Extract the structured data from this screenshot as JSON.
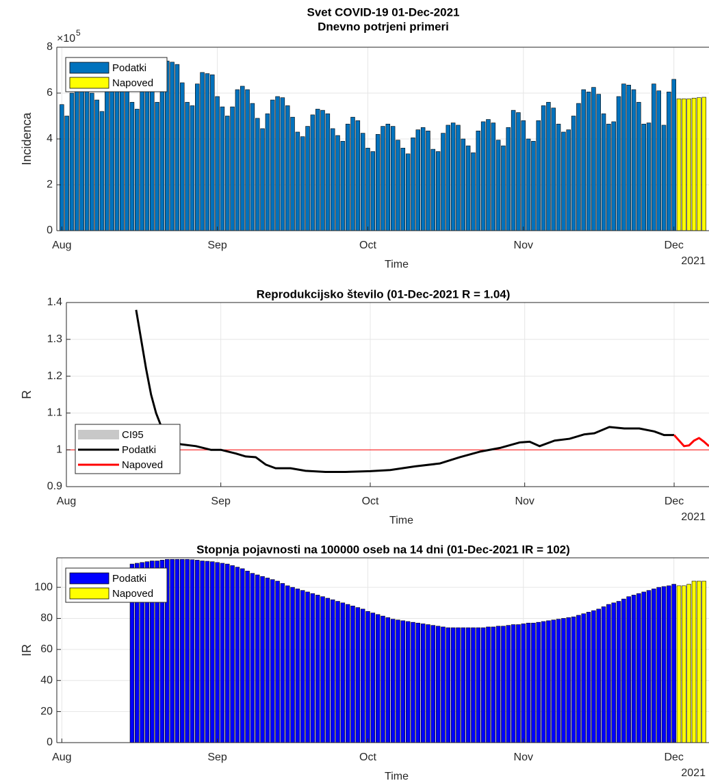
{
  "chart_data": [
    {
      "type": "bar",
      "title": "Svet COVID-19 01-Dec-2021",
      "subtitle": "Dnevno potrjeni primeri",
      "ylabel": "Incidenca",
      "xlabel": "Time",
      "x_year_label": "2021",
      "y_multiplier": "×10",
      "y_exponent": 5,
      "xlim": [
        "2021-07-31",
        "2021-12-08"
      ],
      "xticks": [
        {
          "value": "2021-08-01",
          "label": "Aug"
        },
        {
          "value": "2021-09-01",
          "label": "Sep"
        },
        {
          "value": "2021-10-01",
          "label": "Oct"
        },
        {
          "value": "2021-11-01",
          "label": "Nov"
        },
        {
          "value": "2021-12-01",
          "label": "Dec"
        }
      ],
      "ylim": [
        0,
        8
      ],
      "yticks": [
        0,
        2,
        4,
        6,
        8
      ],
      "grid": true,
      "legend": "upper left",
      "series": [
        {
          "name": "Podatki",
          "color": "#0072bd",
          "x": [
            "2021-08-01",
            "2021-08-02",
            "2021-08-03",
            "2021-08-04",
            "2021-08-05",
            "2021-08-06",
            "2021-08-07",
            "2021-08-08",
            "2021-08-09",
            "2021-08-10",
            "2021-08-11",
            "2021-08-12",
            "2021-08-13",
            "2021-08-14",
            "2021-08-15",
            "2021-08-16",
            "2021-08-17",
            "2021-08-18",
            "2021-08-19",
            "2021-08-20",
            "2021-08-21",
            "2021-08-22",
            "2021-08-23",
            "2021-08-24",
            "2021-08-25",
            "2021-08-26",
            "2021-08-27",
            "2021-08-28",
            "2021-08-29",
            "2021-08-30",
            "2021-08-31",
            "2021-09-01",
            "2021-09-02",
            "2021-09-03",
            "2021-09-04",
            "2021-09-05",
            "2021-09-06",
            "2021-09-07",
            "2021-09-08",
            "2021-09-09",
            "2021-09-10",
            "2021-09-11",
            "2021-09-12",
            "2021-09-13",
            "2021-09-14",
            "2021-09-15",
            "2021-09-16",
            "2021-09-17",
            "2021-09-18",
            "2021-09-19",
            "2021-09-20",
            "2021-09-21",
            "2021-09-22",
            "2021-09-23",
            "2021-09-24",
            "2021-09-25",
            "2021-09-26",
            "2021-09-27",
            "2021-09-28",
            "2021-09-29",
            "2021-09-30",
            "2021-10-01",
            "2021-10-02",
            "2021-10-03",
            "2021-10-04",
            "2021-10-05",
            "2021-10-06",
            "2021-10-07",
            "2021-10-08",
            "2021-10-09",
            "2021-10-10",
            "2021-10-11",
            "2021-10-12",
            "2021-10-13",
            "2021-10-14",
            "2021-10-15",
            "2021-10-16",
            "2021-10-17",
            "2021-10-18",
            "2021-10-19",
            "2021-10-20",
            "2021-10-21",
            "2021-10-22",
            "2021-10-23",
            "2021-10-24",
            "2021-10-25",
            "2021-10-26",
            "2021-10-27",
            "2021-10-28",
            "2021-10-29",
            "2021-10-30",
            "2021-10-31",
            "2021-11-01",
            "2021-11-02",
            "2021-11-03",
            "2021-11-04",
            "2021-11-05",
            "2021-11-06",
            "2021-11-07",
            "2021-11-08",
            "2021-11-09",
            "2021-11-10",
            "2021-11-11",
            "2021-11-12",
            "2021-11-13",
            "2021-11-14",
            "2021-11-15",
            "2021-11-16",
            "2021-11-17",
            "2021-11-18",
            "2021-11-19",
            "2021-11-20",
            "2021-11-21",
            "2021-11-22",
            "2021-11-23",
            "2021-11-24",
            "2021-11-25",
            "2021-11-26",
            "2021-11-27",
            "2021-11-28",
            "2021-11-29",
            "2021-11-30",
            "2021-12-01"
          ],
          "values": [
            5.5,
            5.0,
            6.0,
            6.3,
            6.2,
            6.4,
            6.0,
            5.7,
            5.2,
            6.1,
            6.4,
            6.5,
            6.3,
            6.2,
            5.6,
            5.3,
            6.1,
            6.3,
            6.2,
            5.6,
            6.8,
            7.4,
            7.35,
            7.25,
            6.45,
            5.6,
            5.45,
            6.4,
            6.9,
            6.85,
            6.8,
            5.85,
            5.4,
            5.0,
            5.4,
            6.15,
            6.3,
            6.15,
            5.55,
            4.9,
            4.45,
            5.1,
            5.7,
            5.85,
            5.8,
            5.45,
            4.95,
            4.3,
            4.1,
            4.55,
            5.05,
            5.3,
            5.25,
            5.1,
            4.45,
            4.15,
            3.9,
            4.65,
            4.95,
            4.8,
            4.25,
            3.6,
            3.45,
            4.2,
            4.55,
            4.65,
            4.55,
            3.95,
            3.6,
            3.35,
            4.05,
            4.4,
            4.5,
            4.35,
            3.55,
            3.45,
            4.25,
            4.6,
            4.7,
            4.6,
            4.0,
            3.7,
            3.4,
            4.35,
            4.75,
            4.85,
            4.7,
            3.95,
            3.7,
            4.5,
            5.25,
            5.15,
            4.8,
            4.0,
            3.9,
            4.8,
            5.45,
            5.6,
            5.35,
            4.65,
            4.3,
            4.4,
            5.0,
            5.55,
            6.15,
            6.05,
            6.25,
            5.95,
            5.1,
            4.65,
            4.75,
            5.85,
            6.4,
            6.35,
            6.15,
            5.6,
            4.65,
            4.7,
            6.4,
            6.1,
            4.6,
            6.05,
            6.6
          ]
        },
        {
          "name": "Napoved",
          "color": "#ffff00",
          "x": [
            "2021-12-02",
            "2021-12-03",
            "2021-12-04",
            "2021-12-05",
            "2021-12-06",
            "2021-12-07"
          ],
          "values": [
            5.75,
            5.75,
            5.75,
            5.78,
            5.8,
            5.82
          ]
        }
      ]
    },
    {
      "type": "line",
      "title": "Reprodukcijsko število (01-Dec-2021 R = 1.04)",
      "ylabel": "R",
      "xlabel": "Time",
      "x_year_label": "2021",
      "xlim": [
        "2021-08-01",
        "2021-12-08"
      ],
      "xticks": [
        {
          "value": "2021-08-01",
          "label": "Aug"
        },
        {
          "value": "2021-09-01",
          "label": "Sep"
        },
        {
          "value": "2021-10-01",
          "label": "Oct"
        },
        {
          "value": "2021-11-01",
          "label": "Nov"
        },
        {
          "value": "2021-12-01",
          "label": "Dec"
        }
      ],
      "ylim": [
        0.9,
        1.4
      ],
      "yticks": [
        0.9,
        1,
        1.1,
        1.2,
        1.3,
        1.4
      ],
      "grid": true,
      "legend": "lower left",
      "reference_line": {
        "value": 1,
        "color": "#ff0000"
      },
      "series": [
        {
          "name": "CI95",
          "color": "#c8c8c8"
        },
        {
          "name": "Podatki",
          "color": "#000000",
          "x": [
            "2021-08-15",
            "2021-08-16",
            "2021-08-17",
            "2021-08-18",
            "2021-08-19",
            "2021-08-20",
            "2021-08-21",
            "2021-08-22",
            "2021-08-24",
            "2021-08-27",
            "2021-08-30",
            "2021-09-01",
            "2021-09-04",
            "2021-09-06",
            "2021-09-08",
            "2021-09-10",
            "2021-09-12",
            "2021-09-15",
            "2021-09-18",
            "2021-09-22",
            "2021-09-26",
            "2021-10-01",
            "2021-10-05",
            "2021-10-10",
            "2021-10-15",
            "2021-10-19",
            "2021-10-23",
            "2021-10-27",
            "2021-10-31",
            "2021-11-02",
            "2021-11-04",
            "2021-11-07",
            "2021-11-10",
            "2021-11-13",
            "2021-11-15",
            "2021-11-18",
            "2021-11-21",
            "2021-11-24",
            "2021-11-27",
            "2021-11-29",
            "2021-12-01"
          ],
          "values": [
            1.38,
            1.3,
            1.22,
            1.15,
            1.1,
            1.065,
            1.04,
            1.025,
            1.015,
            1.01,
            1.0,
            1.0,
            0.99,
            0.982,
            0.98,
            0.96,
            0.95,
            0.95,
            0.943,
            0.94,
            0.94,
            0.942,
            0.945,
            0.955,
            0.963,
            0.98,
            0.995,
            1.005,
            1.02,
            1.022,
            1.01,
            1.025,
            1.03,
            1.042,
            1.045,
            1.062,
            1.058,
            1.058,
            1.05,
            1.04,
            1.04
          ]
        },
        {
          "name": "Napoved",
          "color": "#ff0000",
          "x": [
            "2021-12-01",
            "2021-12-02",
            "2021-12-03",
            "2021-12-04",
            "2021-12-05",
            "2021-12-06",
            "2021-12-07",
            "2021-12-08"
          ],
          "values": [
            1.04,
            1.025,
            1.01,
            1.012,
            1.025,
            1.032,
            1.022,
            1.01
          ]
        }
      ]
    },
    {
      "type": "bar",
      "title": "Stopnja pojavnosti na 100000 oseb na 14 dni (01-Dec-2021 IR = 102)",
      "ylabel": "IR",
      "xlabel": "Time",
      "x_year_label": "2021",
      "xlim": [
        "2021-07-31",
        "2021-12-08"
      ],
      "xticks": [
        {
          "value": "2021-08-01",
          "label": "Aug"
        },
        {
          "value": "2021-09-01",
          "label": "Sep"
        },
        {
          "value": "2021-10-01",
          "label": "Oct"
        },
        {
          "value": "2021-11-01",
          "label": "Nov"
        },
        {
          "value": "2021-12-01",
          "label": "Dec"
        }
      ],
      "ylim": [
        0,
        119
      ],
      "yticks": [
        0,
        20,
        40,
        60,
        80,
        100
      ],
      "grid": true,
      "legend": "upper left",
      "series": [
        {
          "name": "Podatki",
          "color": "#0000ff",
          "x": [
            "2021-08-15",
            "2021-08-16",
            "2021-08-17",
            "2021-08-18",
            "2021-08-19",
            "2021-08-20",
            "2021-08-21",
            "2021-08-22",
            "2021-08-23",
            "2021-08-24",
            "2021-08-25",
            "2021-08-26",
            "2021-08-27",
            "2021-08-28",
            "2021-08-29",
            "2021-08-30",
            "2021-08-31",
            "2021-09-01",
            "2021-09-02",
            "2021-09-03",
            "2021-09-04",
            "2021-09-05",
            "2021-09-06",
            "2021-09-07",
            "2021-09-08",
            "2021-09-09",
            "2021-09-10",
            "2021-09-11",
            "2021-09-12",
            "2021-09-13",
            "2021-09-14",
            "2021-09-15",
            "2021-09-16",
            "2021-09-17",
            "2021-09-18",
            "2021-09-19",
            "2021-09-20",
            "2021-09-21",
            "2021-09-22",
            "2021-09-23",
            "2021-09-24",
            "2021-09-25",
            "2021-09-26",
            "2021-09-27",
            "2021-09-28",
            "2021-09-29",
            "2021-09-30",
            "2021-10-01",
            "2021-10-02",
            "2021-10-03",
            "2021-10-04",
            "2021-10-05",
            "2021-10-06",
            "2021-10-07",
            "2021-10-08",
            "2021-10-09",
            "2021-10-10",
            "2021-10-11",
            "2021-10-12",
            "2021-10-13",
            "2021-10-14",
            "2021-10-15",
            "2021-10-16",
            "2021-10-17",
            "2021-10-18",
            "2021-10-19",
            "2021-10-20",
            "2021-10-21",
            "2021-10-22",
            "2021-10-23",
            "2021-10-24",
            "2021-10-25",
            "2021-10-26",
            "2021-10-27",
            "2021-10-28",
            "2021-10-29",
            "2021-10-30",
            "2021-10-31",
            "2021-11-01",
            "2021-11-02",
            "2021-11-03",
            "2021-11-04",
            "2021-11-05",
            "2021-11-06",
            "2021-11-07",
            "2021-11-08",
            "2021-11-09",
            "2021-11-10",
            "2021-11-11",
            "2021-11-12",
            "2021-11-13",
            "2021-11-14",
            "2021-11-15",
            "2021-11-16",
            "2021-11-17",
            "2021-11-18",
            "2021-11-19",
            "2021-11-20",
            "2021-11-21",
            "2021-11-22",
            "2021-11-23",
            "2021-11-24",
            "2021-11-25",
            "2021-11-26",
            "2021-11-27",
            "2021-11-28",
            "2021-11-29",
            "2021-11-30",
            "2021-12-01"
          ],
          "values": [
            115,
            115.5,
            116,
            116.5,
            117,
            117,
            117.5,
            118,
            118,
            118,
            118,
            118,
            117.8,
            117.5,
            117,
            116.8,
            116.5,
            116,
            115.5,
            115,
            114,
            113,
            112,
            110.5,
            109,
            108,
            107,
            106,
            105,
            104,
            102.5,
            101,
            100,
            99,
            98,
            97,
            96,
            95,
            94,
            93,
            92,
            91,
            90,
            89,
            88,
            87,
            86,
            84.5,
            83.5,
            82.5,
            81.5,
            80.5,
            79.5,
            79,
            78.5,
            78,
            77.5,
            77,
            76.5,
            76,
            75.5,
            75,
            74.5,
            74,
            74,
            74,
            74,
            74,
            74,
            74,
            74,
            74.5,
            74.5,
            75,
            75,
            75.5,
            76,
            76,
            76.5,
            77,
            77,
            77.5,
            78,
            78.5,
            79,
            79.5,
            80,
            80.5,
            81,
            82,
            83,
            84,
            85,
            86,
            87.5,
            89,
            90,
            91,
            92.5,
            94,
            95,
            96,
            97,
            98,
            99,
            100,
            100.5,
            101,
            102
          ]
        },
        {
          "name": "Napoved",
          "color": "#ffff00",
          "x": [
            "2021-12-02",
            "2021-12-03",
            "2021-12-04",
            "2021-12-05",
            "2021-12-06",
            "2021-12-07"
          ],
          "values": [
            101,
            101,
            102,
            104,
            104,
            104
          ]
        }
      ]
    }
  ]
}
